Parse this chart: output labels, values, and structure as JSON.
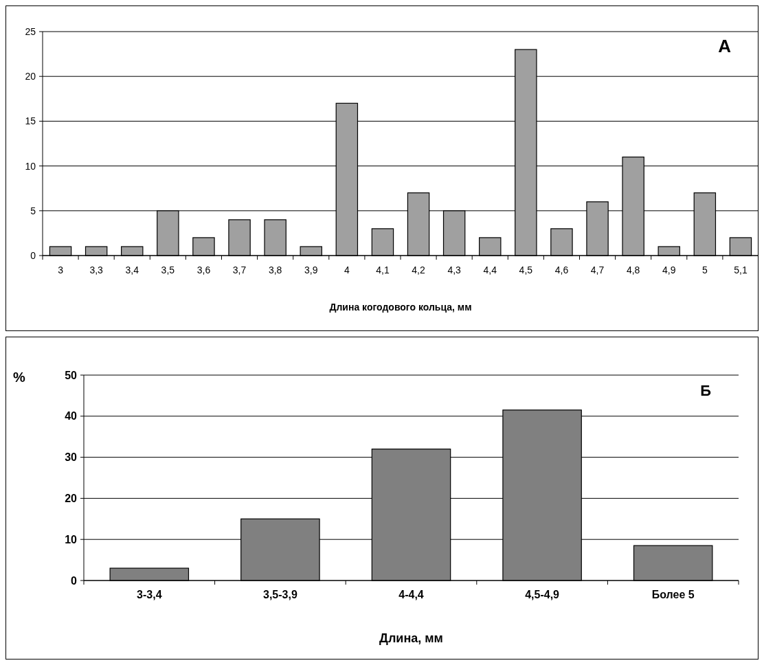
{
  "chart_data": [
    {
      "type": "bar",
      "xlabel": "Длина когодового кольца, мм",
      "categories": [
        "3",
        "3,3",
        "3,4",
        "3,5",
        "3,6",
        "3,7",
        "3,8",
        "3,9",
        "4",
        "4,1",
        "4,2",
        "4,3",
        "4,4",
        "4,5",
        "4,6",
        "4,7",
        "4,8",
        "4,9",
        "5",
        "5,1"
      ],
      "values": [
        1,
        1,
        1,
        5,
        2,
        4,
        4,
        1,
        17,
        3,
        7,
        5,
        2,
        23,
        3,
        6,
        11,
        1,
        7,
        2
      ],
      "color": "#a0a0a0",
      "ylim": [
        0,
        25
      ],
      "yticks": [
        0,
        5,
        10,
        15,
        20,
        25
      ],
      "grid": "y",
      "annotations": [
        "А"
      ]
    },
    {
      "type": "bar",
      "xlabel": "Длина, мм",
      "ylabel": "%",
      "categories": [
        "3-3,4",
        "3,5-3,9",
        "4-4,4",
        "4,5-4,9",
        "Более 5"
      ],
      "values": [
        3,
        15,
        32,
        41.5,
        8.5
      ],
      "color": "#808080",
      "ylim": [
        0,
        50
      ],
      "yticks": [
        0,
        10,
        20,
        30,
        40,
        50
      ],
      "grid": "y",
      "annotations": [
        "Б"
      ]
    }
  ]
}
